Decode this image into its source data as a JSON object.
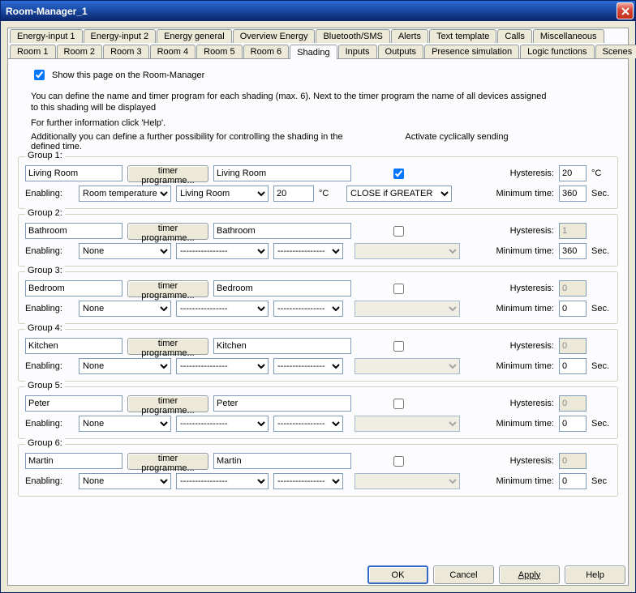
{
  "window": {
    "title": "Room-Manager_1"
  },
  "tabs": {
    "row1": [
      "Energy-input 1",
      "Energy-input 2",
      "Energy general",
      "Overview Energy",
      "Bluetooth/SMS",
      "Alerts",
      "Text template",
      "Calls",
      "Miscellaneous"
    ],
    "row2": [
      "Room 1",
      "Room 2",
      "Room 3",
      "Room 4",
      "Room 5",
      "Room 6",
      "Shading",
      "Inputs",
      "Outputs",
      "Presence simulation",
      "Logic functions",
      "Scenes"
    ],
    "active": "Shading"
  },
  "show_page_label": "Show this page on the Room-Manager",
  "desc1": "You can define the name and timer program for each shading (max. 6). Next to the timer program the name of all devices assigned to this shading will be displayed",
  "desc2": "For further information click 'Help'.",
  "desc3": "Additionally you can define a further possibility for controlling the shading in the defined time.",
  "cyclic_label": "Activate cyclically sending",
  "labels": {
    "enabling": "Enabling:",
    "hyst": "Hysteresis:",
    "mintime": "Minimum time:",
    "sec": "Sec.",
    "sec2": "Sec",
    "degc": "°C",
    "timer": "timer programme..."
  },
  "groups": [
    {
      "legend": "Group 1:",
      "name": "Living Room",
      "assigned": "Living Room",
      "cyc": true,
      "hyst": "20",
      "hyst_unit": "°C",
      "hyst_enabled": true,
      "mintime": "360",
      "enabling": "Room temperature",
      "enabling_room": "Living Room",
      "value": "20",
      "value_unit": "°C",
      "condition": "CLOSE if GREATER",
      "condition_enabled": true
    },
    {
      "legend": "Group 2:",
      "name": "Bathroom",
      "assigned": "Bathroom",
      "cyc": false,
      "hyst": "1",
      "hyst_enabled": false,
      "mintime": "360",
      "enabling": "None",
      "enabling_room": "----------------",
      "value": "----------------",
      "condition": "",
      "condition_enabled": false
    },
    {
      "legend": "Group 3:",
      "name": "Bedroom",
      "assigned": "Bedroom",
      "cyc": false,
      "hyst": "0",
      "hyst_enabled": false,
      "mintime": "0",
      "enabling": "None",
      "enabling_room": "----------------",
      "value": "----------------",
      "condition": "",
      "condition_enabled": false
    },
    {
      "legend": "Group 4:",
      "name": "Kitchen",
      "assigned": "Kitchen",
      "cyc": false,
      "hyst": "0",
      "hyst_enabled": false,
      "mintime": "0",
      "enabling": "None",
      "enabling_room": "----------------",
      "value": "----------------",
      "condition": "",
      "condition_enabled": false
    },
    {
      "legend": "Group 5:",
      "name": "Peter",
      "assigned": "Peter",
      "cyc": false,
      "hyst": "0",
      "hyst_enabled": false,
      "mintime": "0",
      "enabling": "None",
      "enabling_room": "----------------",
      "value": "----------------",
      "condition": "",
      "condition_enabled": false
    },
    {
      "legend": "Group 6:",
      "name": "Martin",
      "assigned": "Martin",
      "cyc": false,
      "hyst": "0",
      "hyst_enabled": false,
      "mintime": "0",
      "enabling": "None",
      "enabling_room": "----------------",
      "value": "----------------",
      "condition": "",
      "condition_enabled": false,
      "sec_variant": true
    }
  ],
  "buttons": {
    "ok": "OK",
    "cancel": "Cancel",
    "apply": "Apply",
    "help": "Help"
  }
}
